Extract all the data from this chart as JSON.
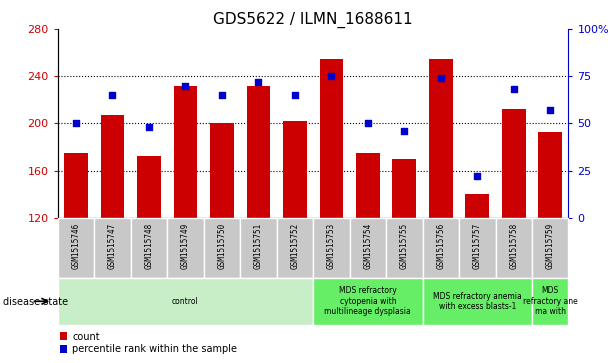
{
  "title": "GDS5622 / ILMN_1688611",
  "samples": [
    "GSM1515746",
    "GSM1515747",
    "GSM1515748",
    "GSM1515749",
    "GSM1515750",
    "GSM1515751",
    "GSM1515752",
    "GSM1515753",
    "GSM1515754",
    "GSM1515755",
    "GSM1515756",
    "GSM1515757",
    "GSM1515758",
    "GSM1515759"
  ],
  "counts": [
    175,
    207,
    172,
    232,
    200,
    232,
    202,
    255,
    175,
    170,
    255,
    140,
    212,
    193
  ],
  "percentiles": [
    50,
    65,
    48,
    70,
    65,
    72,
    65,
    75,
    50,
    46,
    74,
    22,
    68,
    57
  ],
  "ylim_left": [
    120,
    280
  ],
  "ylim_right": [
    0,
    100
  ],
  "yticks_left": [
    120,
    160,
    200,
    240,
    280
  ],
  "yticks_right": [
    0,
    25,
    50,
    75,
    100
  ],
  "bar_color": "#cc0000",
  "dot_color": "#0000cc",
  "xticklabel_bg": "#c8c8c8",
  "disease_groups": [
    {
      "label": "control",
      "start": 0,
      "end": 7
    },
    {
      "label": "MDS refractory\ncytopenia with\nmultilineage dysplasia",
      "start": 7,
      "end": 10
    },
    {
      "label": "MDS refractory anemia\nwith excess blasts-1",
      "start": 10,
      "end": 13
    },
    {
      "label": "MDS\nrefractory ane\nma with",
      "start": 13,
      "end": 14
    }
  ],
  "group_colors": [
    "#c8eec8",
    "#66ee66",
    "#66ee66",
    "#66ee66"
  ],
  "legend_count_label": "count",
  "legend_percentile_label": "percentile rank within the sample",
  "disease_state_label": "disease state"
}
